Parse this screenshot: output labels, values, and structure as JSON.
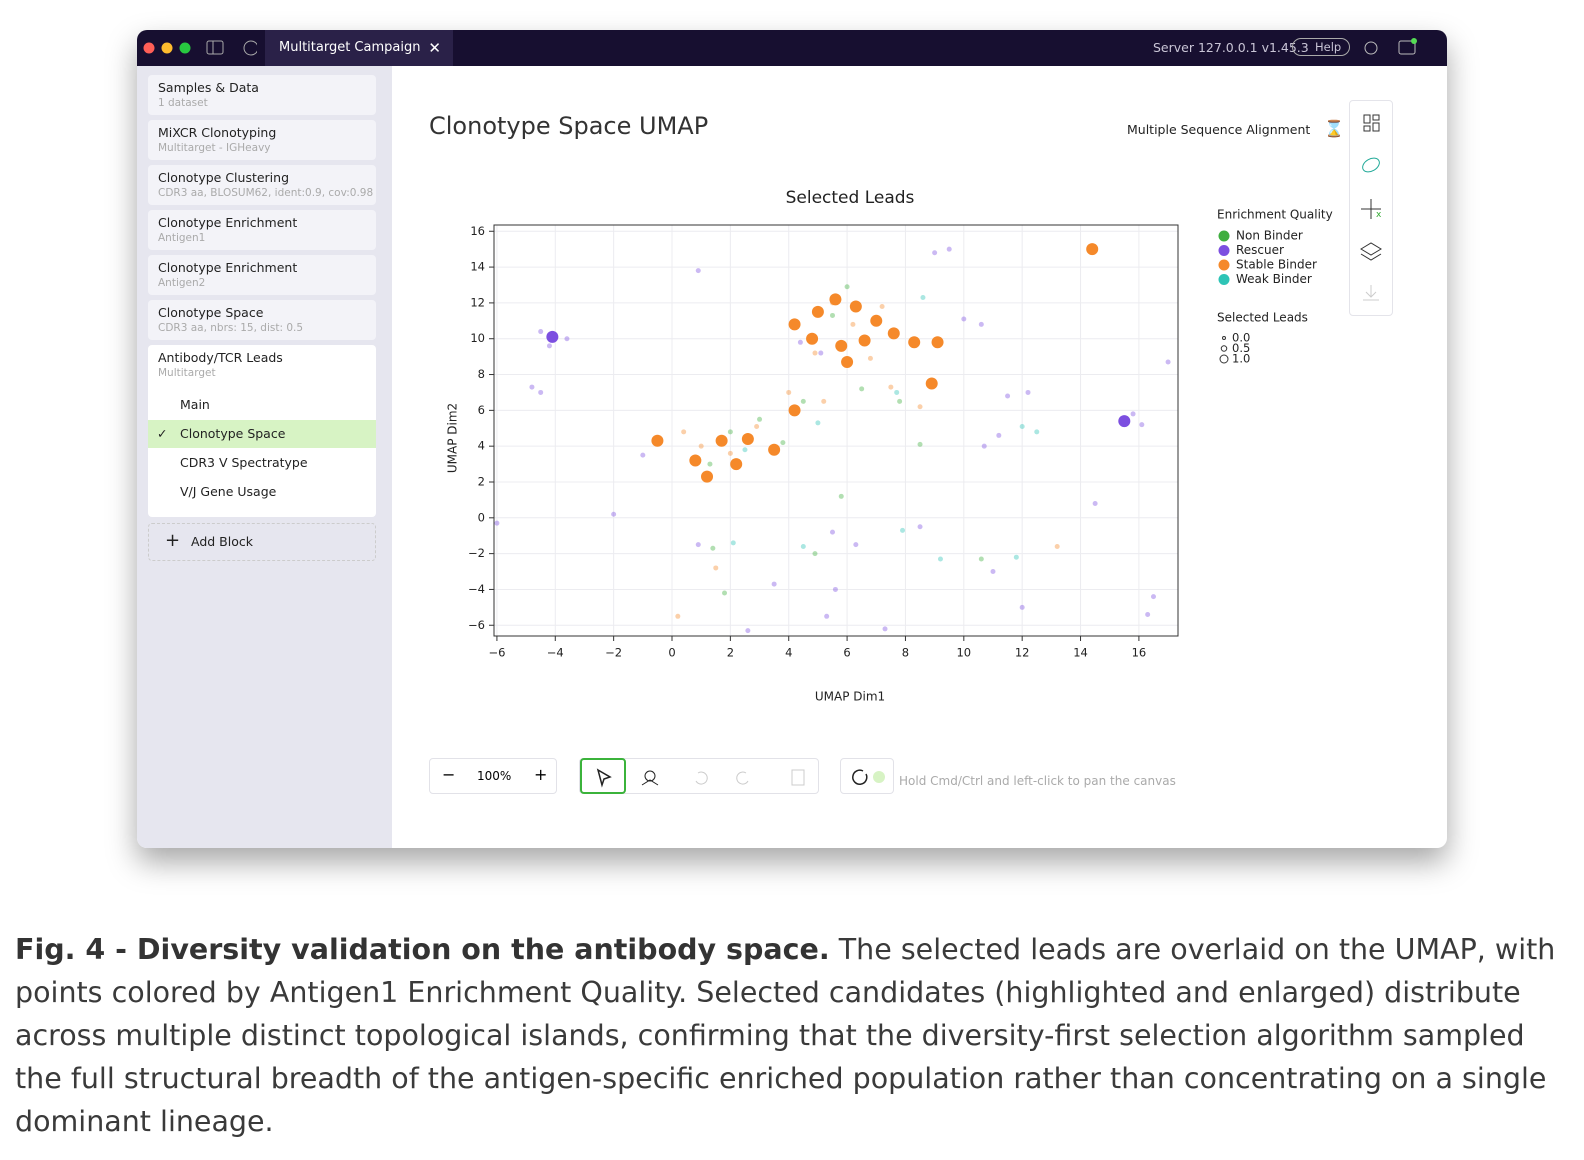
{
  "window": {
    "tab": "Multitarget Campaign",
    "server": "Server 127.0.0.1 v1.45.3",
    "help": "Help"
  },
  "sidebar": {
    "blocks": [
      {
        "title": "Samples & Data",
        "subtitle": "1 dataset"
      },
      {
        "title": "MiXCR Clonotyping",
        "subtitle": "Multitarget - IGHeavy"
      },
      {
        "title": "Clonotype Clustering",
        "subtitle": "CDR3 aa, BLOSUM62, ident:0.9, cov:0.98"
      },
      {
        "title": "Clonotype Enrichment",
        "subtitle": "Antigen1"
      },
      {
        "title": "Clonotype Enrichment",
        "subtitle": "Antigen2"
      },
      {
        "title": "Clonotype Space",
        "subtitle": "CDR3 aa, nbrs: 15, dist: 0.5"
      }
    ],
    "active_block": {
      "title": "Antibody/TCR Leads",
      "subtitle": "Multitarget",
      "views": [
        {
          "label": "Main",
          "selected": false
        },
        {
          "label": "Clonotype Space",
          "selected": true
        },
        {
          "label": "CDR3 V Spectratype",
          "selected": false
        },
        {
          "label": "V/J Gene Usage",
          "selected": false
        }
      ]
    },
    "add_block": "Add Block"
  },
  "header": {
    "title": "Clonotype Space UMAP",
    "link": "Multiple Sequence Alignment"
  },
  "toolbar": {
    "zoom": "100%",
    "hint": "Hold Cmd/Ctrl and left-click to pan the canvas"
  },
  "chart_data": {
    "type": "scatter",
    "title": "Selected Leads",
    "x_label": "UMAP Dim1",
    "y_label": "UMAP Dim2",
    "xlim": [
      -6.1,
      17.34
    ],
    "ylim": [
      -6.6,
      16.35
    ],
    "xticks": [
      {
        "value": -6,
        "label": "−6"
      },
      {
        "value": -4,
        "label": "−4"
      },
      {
        "value": -2,
        "label": "−2"
      },
      0,
      2,
      4,
      6,
      8,
      10,
      12,
      14,
      16
    ],
    "yticks": [
      {
        "value": -6,
        "label": "−6"
      },
      {
        "value": -4,
        "label": "−4"
      },
      {
        "value": -2,
        "label": "−2"
      },
      0,
      2,
      4,
      6,
      8,
      10,
      12,
      14,
      16
    ],
    "grid": true,
    "legend_title": "Enrichment Quality",
    "size_legend": {
      "title": "Selected Leads",
      "sizes": [
        {
          "value": 0,
          "label": "0.0"
        },
        {
          "value": 0.5,
          "label": "0.5"
        },
        {
          "value": 1,
          "label": "1.0"
        }
      ]
    },
    "series": [
      {
        "name": "Non Binder",
        "color": "#3fae3f",
        "x": [
          3.0,
          4.5,
          6.5,
          7.8,
          2.0,
          1.3,
          3.8,
          5.5,
          1.4,
          4.9,
          10.6,
          8.5,
          1.8,
          5.8,
          6.0
        ],
        "y": [
          5.5,
          6.5,
          7.2,
          6.5,
          4.8,
          3.0,
          4.2,
          11.3,
          -1.7,
          -2.0,
          -2.3,
          4.1,
          -4.2,
          1.2,
          12.9
        ],
        "size": [
          0,
          0,
          0,
          0,
          0,
          0,
          0,
          0,
          0,
          0,
          0,
          0,
          0,
          0,
          0
        ]
      },
      {
        "name": "Rescuer",
        "color": "#7c4fe0",
        "x": [
          -4.5,
          -3.6,
          -4.2,
          15.8,
          16.1,
          9.0,
          9.5,
          0.9,
          10.0,
          10.6,
          5.1,
          4.4,
          17.0,
          11.5,
          12.2,
          10.7,
          11.2,
          -1.0,
          -4.5,
          0.9,
          5.5,
          6.3,
          8.5,
          11.0,
          3.5,
          5.6,
          5.3,
          7.3,
          2.6,
          12.0,
          16.3,
          16.5,
          -4.8,
          -6.0,
          -2.0,
          14.5,
          -4.1,
          15.5
        ],
        "y": [
          10.4,
          10.0,
          9.6,
          5.8,
          5.2,
          14.8,
          15.0,
          13.8,
          11.1,
          10.8,
          9.2,
          9.8,
          8.7,
          6.8,
          7.0,
          4.0,
          4.6,
          3.5,
          7.0,
          -1.5,
          -0.8,
          -1.5,
          -0.5,
          -3.0,
          -3.7,
          -4.0,
          -5.5,
          -6.2,
          -6.3,
          -5.0,
          -5.4,
          -4.4,
          7.3,
          -0.3,
          0.2,
          0.8,
          10.1,
          5.4
        ],
        "size": [
          0,
          0,
          0,
          0,
          0,
          0,
          0,
          0,
          0,
          0,
          0,
          0,
          0,
          0,
          0,
          0,
          0,
          0,
          0,
          0,
          0,
          0,
          0,
          0,
          0,
          0,
          0,
          0,
          0,
          0,
          0,
          0,
          0,
          0,
          0,
          0,
          1,
          1
        ]
      },
      {
        "name": "Stable Binder",
        "color": "#f5892a",
        "x": [
          5.5,
          6.2,
          7.2,
          4.9,
          6.8,
          1.0,
          2.0,
          0.4,
          2.9,
          4.0,
          5.2,
          7.5,
          8.5,
          0.2,
          1.5,
          13.2,
          5.0,
          5.6,
          6.3,
          7.0,
          4.8,
          5.8,
          6.6,
          7.6,
          8.3,
          9.1,
          6.0,
          4.2,
          0.8,
          1.7,
          2.6,
          -0.5,
          1.2,
          2.2,
          3.5,
          4.2,
          8.9,
          14.4
        ],
        "y": [
          12.0,
          10.8,
          11.8,
          9.2,
          8.9,
          4.0,
          3.6,
          4.8,
          5.1,
          7.0,
          6.5,
          7.3,
          6.2,
          -5.5,
          -2.8,
          -1.6,
          11.5,
          12.2,
          11.8,
          11.0,
          10.0,
          9.6,
          9.9,
          10.3,
          9.8,
          9.8,
          8.7,
          10.8,
          3.2,
          4.3,
          4.4,
          4.3,
          2.3,
          3.0,
          3.8,
          6.0,
          7.5,
          15.0
        ],
        "size": [
          0,
          0,
          0,
          0,
          0,
          0,
          0,
          0,
          0,
          0,
          0,
          0,
          0,
          0,
          0,
          0,
          1,
          1,
          1,
          1,
          1,
          1,
          1,
          1,
          1,
          1,
          1,
          1,
          1,
          1,
          1,
          1,
          1,
          1,
          1,
          1,
          1,
          1
        ]
      },
      {
        "name": "Weak Binder",
        "color": "#2ec4b6",
        "x": [
          8.6,
          7.7,
          5.0,
          2.5,
          11.8,
          12.0,
          2.1,
          7.9,
          4.5,
          9.2,
          12.5
        ],
        "y": [
          12.3,
          7.0,
          5.3,
          3.8,
          -2.2,
          5.1,
          -1.4,
          -0.7,
          -1.6,
          -2.3,
          4.8
        ],
        "size": [
          0,
          0,
          0,
          0,
          0,
          0,
          0,
          0,
          0,
          0,
          0
        ]
      }
    ]
  },
  "caption": {
    "label": "Fig. 4 - Diversity validation on the antibody space.",
    "text": " The selected leads are overlaid on the UMAP, with points colored by Antigen1 Enrichment Quality. Selected candidates (highlighted and enlarged) distribute across multiple distinct topological islands, confirming that the diversity-first selection algorithm sampled the full structural breadth of the antigen-specific enriched population rather than concentrating on a single dominant lineage."
  }
}
